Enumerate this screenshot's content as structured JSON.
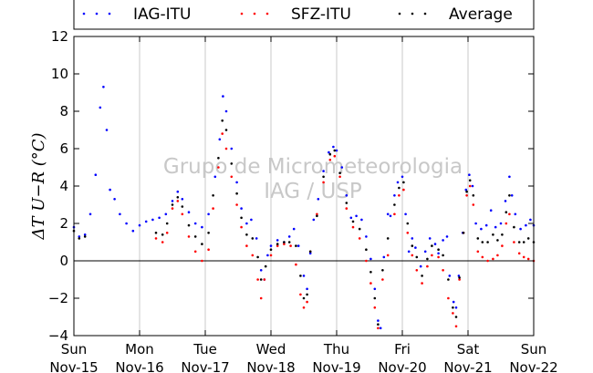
{
  "chart_data": {
    "type": "scatter",
    "ylabel": "ΔT U−R (°C)",
    "ylim": [
      -4,
      12
    ],
    "yticks": [
      -4,
      -2,
      0,
      2,
      4,
      6,
      8,
      10,
      12
    ],
    "ytick_labels": [
      "−4",
      "−2",
      "0",
      "2",
      "4",
      "6",
      "8",
      "10",
      "12"
    ],
    "xlim": [
      0,
      7
    ],
    "xticks": [
      {
        "x": 0,
        "day": "Sun",
        "date": "Nov-15"
      },
      {
        "x": 1,
        "day": "Mon",
        "date": "Nov-16"
      },
      {
        "x": 2,
        "day": "Tue",
        "date": "Nov-17"
      },
      {
        "x": 3,
        "day": "Wed",
        "date": "Nov-18"
      },
      {
        "x": 4,
        "day": "Thu",
        "date": "Nov-19"
      },
      {
        "x": 5,
        "day": "Fri",
        "date": "Nov-20"
      },
      {
        "x": 6,
        "day": "Sat",
        "date": "Nov-21"
      },
      {
        "x": 7,
        "day": "Sun",
        "date": "Nov-22"
      }
    ],
    "grid": "vertical",
    "zero_line": true,
    "legend_position": "top",
    "watermark": [
      "Grupo de Micrometeorologia",
      "IAG / USP"
    ],
    "series": [
      {
        "name": "IAG-ITU",
        "color": "#0000ff",
        "points": [
          [
            0.0,
            1.8
          ],
          [
            0.08,
            1.3
          ],
          [
            0.17,
            1.4
          ],
          [
            0.25,
            2.5
          ],
          [
            0.33,
            4.6
          ],
          [
            0.4,
            8.2
          ],
          [
            0.45,
            9.3
          ],
          [
            0.5,
            7.0
          ],
          [
            0.55,
            3.8
          ],
          [
            0.62,
            3.3
          ],
          [
            0.7,
            2.5
          ],
          [
            0.8,
            2.0
          ],
          [
            0.9,
            1.6
          ],
          [
            1.0,
            1.9
          ],
          [
            1.1,
            2.1
          ],
          [
            1.2,
            2.2
          ],
          [
            1.3,
            2.3
          ],
          [
            1.4,
            2.5
          ],
          [
            1.5,
            3.2
          ],
          [
            1.58,
            3.7
          ],
          [
            1.65,
            3.3
          ],
          [
            1.75,
            2.6
          ],
          [
            1.85,
            2.0
          ],
          [
            1.95,
            1.8
          ],
          [
            2.05,
            2.5
          ],
          [
            2.15,
            4.5
          ],
          [
            2.22,
            6.5
          ],
          [
            2.27,
            8.8
          ],
          [
            2.32,
            8.0
          ],
          [
            2.4,
            6.0
          ],
          [
            2.48,
            4.2
          ],
          [
            2.55,
            2.8
          ],
          [
            2.63,
            2.0
          ],
          [
            2.7,
            2.2
          ],
          [
            2.78,
            1.2
          ],
          [
            2.85,
            -0.5
          ],
          [
            2.9,
            -1.0
          ],
          [
            2.95,
            0.3
          ],
          [
            3.0,
            0.8
          ],
          [
            3.1,
            1.1
          ],
          [
            3.2,
            1.0
          ],
          [
            3.28,
            1.3
          ],
          [
            3.35,
            1.7
          ],
          [
            3.42,
            0.8
          ],
          [
            3.5,
            -0.8
          ],
          [
            3.55,
            -1.5
          ],
          [
            3.6,
            0.4
          ],
          [
            3.65,
            2.2
          ],
          [
            3.72,
            3.3
          ],
          [
            3.8,
            4.8
          ],
          [
            3.88,
            5.8
          ],
          [
            3.95,
            6.1
          ],
          [
            4.0,
            5.9
          ],
          [
            4.08,
            5.0
          ],
          [
            4.15,
            3.5
          ],
          [
            4.22,
            2.3
          ],
          [
            4.3,
            2.4
          ],
          [
            4.38,
            2.2
          ],
          [
            4.45,
            1.3
          ],
          [
            4.52,
            0.1
          ],
          [
            4.58,
            -1.5
          ],
          [
            4.63,
            -3.2
          ],
          [
            4.67,
            -3.6
          ],
          [
            4.72,
            0.2
          ],
          [
            4.78,
            2.5
          ],
          [
            4.82,
            2.4
          ],
          [
            4.88,
            3.5
          ],
          [
            4.93,
            4.2
          ],
          [
            5.0,
            4.5
          ],
          [
            5.05,
            2.5
          ],
          [
            5.1,
            0.5
          ],
          [
            5.15,
            1.2
          ],
          [
            5.2,
            0.7
          ],
          [
            5.28,
            -0.3
          ],
          [
            5.35,
            0.5
          ],
          [
            5.42,
            1.2
          ],
          [
            5.5,
            0.9
          ],
          [
            5.55,
            0.4
          ],
          [
            5.62,
            1.1
          ],
          [
            5.68,
            1.3
          ],
          [
            5.72,
            -0.8
          ],
          [
            5.78,
            -2.2
          ],
          [
            5.82,
            -2.5
          ],
          [
            5.86,
            -0.8
          ],
          [
            5.92,
            1.5
          ],
          [
            5.97,
            3.8
          ],
          [
            6.02,
            4.6
          ],
          [
            6.07,
            4.0
          ],
          [
            6.12,
            2.0
          ],
          [
            6.2,
            1.7
          ],
          [
            6.28,
            1.9
          ],
          [
            6.35,
            2.7
          ],
          [
            6.42,
            1.8
          ],
          [
            6.5,
            2.0
          ],
          [
            6.57,
            3.2
          ],
          [
            6.63,
            4.5
          ],
          [
            6.67,
            3.5
          ],
          [
            6.72,
            2.5
          ],
          [
            6.8,
            1.7
          ],
          [
            6.88,
            1.9
          ],
          [
            6.95,
            2.2
          ],
          [
            7.0,
            1.9
          ]
        ]
      },
      {
        "name": "SFZ-ITU",
        "color": "#ff0000",
        "points": [
          [
            1.25,
            1.2
          ],
          [
            1.35,
            1.0
          ],
          [
            1.42,
            1.5
          ],
          [
            1.5,
            2.8
          ],
          [
            1.58,
            3.2
          ],
          [
            1.65,
            2.5
          ],
          [
            1.75,
            1.3
          ],
          [
            1.85,
            0.5
          ],
          [
            1.95,
            0.0
          ],
          [
            2.05,
            0.6
          ],
          [
            2.12,
            2.8
          ],
          [
            2.2,
            5.0
          ],
          [
            2.26,
            6.8
          ],
          [
            2.32,
            6.0
          ],
          [
            2.4,
            4.5
          ],
          [
            2.48,
            3.0
          ],
          [
            2.55,
            1.8
          ],
          [
            2.63,
            0.8
          ],
          [
            2.72,
            0.3
          ],
          [
            2.8,
            -1.0
          ],
          [
            2.85,
            -2.0
          ],
          [
            2.9,
            -1.0
          ],
          [
            3.0,
            0.3
          ],
          [
            3.1,
            0.8
          ],
          [
            3.2,
            0.9
          ],
          [
            3.3,
            0.8
          ],
          [
            3.38,
            -0.2
          ],
          [
            3.45,
            -1.8
          ],
          [
            3.5,
            -2.5
          ],
          [
            3.55,
            -2.2
          ],
          [
            3.6,
            0.5
          ],
          [
            3.7,
            2.5
          ],
          [
            3.8,
            4.2
          ],
          [
            3.9,
            5.4
          ],
          [
            3.97,
            5.6
          ],
          [
            4.05,
            4.5
          ],
          [
            4.15,
            2.8
          ],
          [
            4.25,
            1.8
          ],
          [
            4.35,
            1.2
          ],
          [
            4.45,
            0.0
          ],
          [
            4.52,
            -1.2
          ],
          [
            4.58,
            -2.5
          ],
          [
            4.63,
            -3.6
          ],
          [
            4.7,
            -1.0
          ],
          [
            4.78,
            0.3
          ],
          [
            4.88,
            2.5
          ],
          [
            4.95,
            3.5
          ],
          [
            5.02,
            3.8
          ],
          [
            5.08,
            1.5
          ],
          [
            5.15,
            0.3
          ],
          [
            5.22,
            -0.5
          ],
          [
            5.3,
            -1.2
          ],
          [
            5.38,
            -0.3
          ],
          [
            5.45,
            0.3
          ],
          [
            5.55,
            0.2
          ],
          [
            5.62,
            -0.5
          ],
          [
            5.7,
            -2.0
          ],
          [
            5.77,
            -2.8
          ],
          [
            5.82,
            -3.5
          ],
          [
            5.87,
            -1.0
          ],
          [
            5.93,
            1.5
          ],
          [
            5.98,
            3.5
          ],
          [
            6.03,
            4.0
          ],
          [
            6.08,
            3.0
          ],
          [
            6.15,
            0.5
          ],
          [
            6.22,
            0.2
          ],
          [
            6.3,
            0.0
          ],
          [
            6.38,
            0.1
          ],
          [
            6.45,
            0.3
          ],
          [
            6.52,
            0.8
          ],
          [
            6.58,
            2.0
          ],
          [
            6.63,
            2.5
          ],
          [
            6.7,
            1.0
          ],
          [
            6.78,
            0.4
          ],
          [
            6.85,
            0.2
          ],
          [
            6.92,
            0.1
          ],
          [
            7.0,
            0.0
          ]
        ]
      },
      {
        "name": "Average",
        "color": "#000000",
        "points": [
          [
            0.0,
            1.6
          ],
          [
            0.08,
            1.2
          ],
          [
            0.17,
            1.3
          ],
          [
            1.25,
            1.5
          ],
          [
            1.35,
            1.4
          ],
          [
            1.42,
            2.0
          ],
          [
            1.5,
            3.0
          ],
          [
            1.58,
            3.4
          ],
          [
            1.65,
            2.9
          ],
          [
            1.75,
            1.9
          ],
          [
            1.85,
            1.3
          ],
          [
            1.95,
            0.9
          ],
          [
            2.05,
            1.5
          ],
          [
            2.12,
            3.5
          ],
          [
            2.2,
            5.5
          ],
          [
            2.26,
            7.5
          ],
          [
            2.32,
            7.0
          ],
          [
            2.4,
            5.2
          ],
          [
            2.48,
            3.6
          ],
          [
            2.55,
            2.3
          ],
          [
            2.63,
            1.4
          ],
          [
            2.72,
            1.2
          ],
          [
            2.8,
            0.2
          ],
          [
            2.85,
            -1.0
          ],
          [
            2.92,
            -0.3
          ],
          [
            3.0,
            0.6
          ],
          [
            3.1,
            0.9
          ],
          [
            3.2,
            1.0
          ],
          [
            3.28,
            1.0
          ],
          [
            3.38,
            0.8
          ],
          [
            3.45,
            -0.8
          ],
          [
            3.5,
            -2.0
          ],
          [
            3.55,
            -1.8
          ],
          [
            3.6,
            0.5
          ],
          [
            3.7,
            2.4
          ],
          [
            3.8,
            4.5
          ],
          [
            3.9,
            5.7
          ],
          [
            3.97,
            5.9
          ],
          [
            4.05,
            4.7
          ],
          [
            4.15,
            3.1
          ],
          [
            4.25,
            2.1
          ],
          [
            4.35,
            1.7
          ],
          [
            4.45,
            0.6
          ],
          [
            4.52,
            -0.6
          ],
          [
            4.58,
            -2.0
          ],
          [
            4.63,
            -3.4
          ],
          [
            4.7,
            -0.5
          ],
          [
            4.78,
            1.2
          ],
          [
            4.88,
            3.0
          ],
          [
            4.95,
            3.9
          ],
          [
            5.02,
            4.2
          ],
          [
            5.08,
            2.0
          ],
          [
            5.15,
            0.8
          ],
          [
            5.22,
            0.2
          ],
          [
            5.3,
            -0.8
          ],
          [
            5.38,
            0.1
          ],
          [
            5.45,
            0.8
          ],
          [
            5.55,
            0.6
          ],
          [
            5.62,
            0.3
          ],
          [
            5.7,
            -1.0
          ],
          [
            5.77,
            -2.5
          ],
          [
            5.82,
            -3.0
          ],
          [
            5.87,
            -0.9
          ],
          [
            5.93,
            1.5
          ],
          [
            5.98,
            3.7
          ],
          [
            6.03,
            4.3
          ],
          [
            6.08,
            3.5
          ],
          [
            6.15,
            1.2
          ],
          [
            6.22,
            1.0
          ],
          [
            6.3,
            1.0
          ],
          [
            6.38,
            1.4
          ],
          [
            6.45,
            1.1
          ],
          [
            6.52,
            1.4
          ],
          [
            6.58,
            2.6
          ],
          [
            6.63,
            3.5
          ],
          [
            6.7,
            1.8
          ],
          [
            6.78,
            1.0
          ],
          [
            6.85,
            1.0
          ],
          [
            6.92,
            1.2
          ],
          [
            7.0,
            1.0
          ]
        ]
      }
    ]
  }
}
